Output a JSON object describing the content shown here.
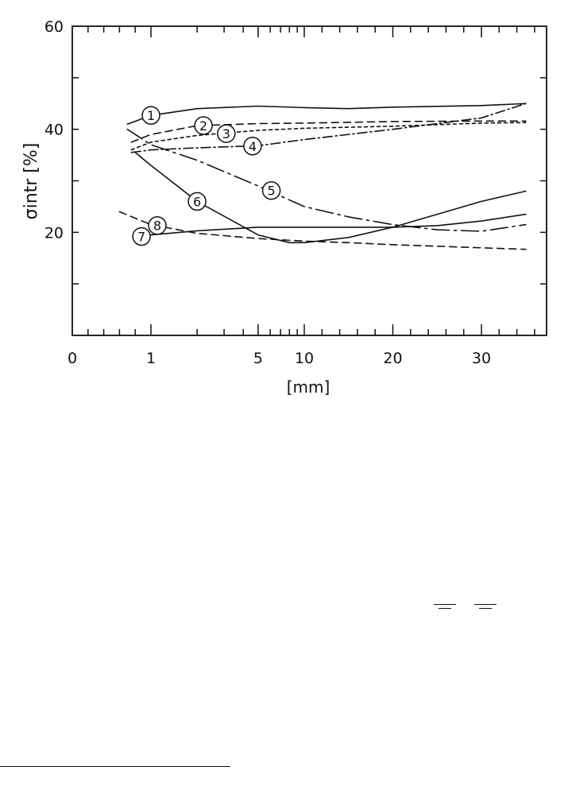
{
  "chart_data": {
    "type": "line",
    "title": "",
    "ylabel": "σintr [%]",
    "xlabel": "[mm]",
    "ylim": [
      0,
      60
    ],
    "y_ticks": [
      20,
      40,
      60
    ],
    "x_tick_labels": [
      "0",
      "1",
      "5",
      "10",
      "20",
      "30"
    ],
    "x_ticks_mm": [
      0,
      1,
      5,
      10,
      20,
      30
    ],
    "x_scale": "piecewise (0 to 1 linear, 1 to 10 log, 10 to 30 linear)",
    "grid": false,
    "legend": "numbered circle labels on curves",
    "series": [
      {
        "name": "1",
        "style": "solid",
        "x": [
          0.7,
          1.0,
          2.0,
          5.0,
          10.0,
          15.0,
          20.0,
          30.0,
          35.0
        ],
        "y": [
          41,
          42.7,
          44.0,
          44.5,
          44.2,
          44.0,
          44.3,
          44.6,
          45.0
        ]
      },
      {
        "name": "2",
        "style": "dashed",
        "x": [
          0.75,
          1.0,
          2.0,
          5.0,
          10.0,
          20.0,
          30.0,
          35.0
        ],
        "y": [
          37.5,
          39.0,
          40.7,
          41.1,
          41.2,
          41.5,
          41.6,
          41.6
        ]
      },
      {
        "name": "3",
        "style": "dotted",
        "x": [
          0.75,
          1.0,
          2.0,
          5.0,
          10.0,
          20.0,
          30.0,
          35.0
        ],
        "y": [
          36.0,
          37.5,
          38.8,
          39.8,
          40.2,
          40.6,
          41.2,
          41.3
        ]
      },
      {
        "name": "4",
        "style": "dash-dot",
        "x": [
          0.75,
          1.0,
          2.0,
          5.0,
          10.0,
          20.0,
          30.0,
          35.0
        ],
        "y": [
          35.5,
          36.0,
          36.4,
          36.8,
          38.0,
          40.0,
          42.2,
          45.0
        ]
      },
      {
        "name": "5",
        "style": "long-dash-dot",
        "x": [
          0.7,
          1.0,
          2.0,
          5.0,
          10.0,
          15.0,
          20.0,
          25.0,
          30.0,
          35.0
        ],
        "y": [
          40.0,
          37.0,
          34.0,
          29.0,
          25.0,
          23.0,
          21.5,
          20.5,
          20.2,
          21.5
        ]
      },
      {
        "name": "6",
        "style": "solid",
        "x": [
          0.8,
          1.0,
          2.0,
          5.0,
          8.0,
          10.0,
          15.0,
          20.0,
          25.0,
          30.0,
          35.0
        ],
        "y": [
          35.5,
          33.0,
          26.0,
          19.5,
          18.0,
          18.0,
          19.0,
          21.0,
          23.5,
          26.0,
          28.0
        ]
      },
      {
        "name": "7",
        "style": "solid",
        "x": [
          0.8,
          1.0,
          2.0,
          5.0,
          10.0,
          15.0,
          20.0,
          25.0,
          30.0,
          35.0
        ],
        "y": [
          19.0,
          19.5,
          20.3,
          21.0,
          21.0,
          21.0,
          21.0,
          21.3,
          22.2,
          23.5
        ]
      },
      {
        "name": "8",
        "style": "dashed",
        "x": [
          0.6,
          1.0,
          2.0,
          5.0,
          10.0,
          15.0,
          20.0,
          25.0,
          30.0,
          35.0
        ],
        "y": [
          24.0,
          21.5,
          19.8,
          18.8,
          18.3,
          18.0,
          17.6,
          17.3,
          17.0,
          16.7
        ]
      }
    ]
  }
}
